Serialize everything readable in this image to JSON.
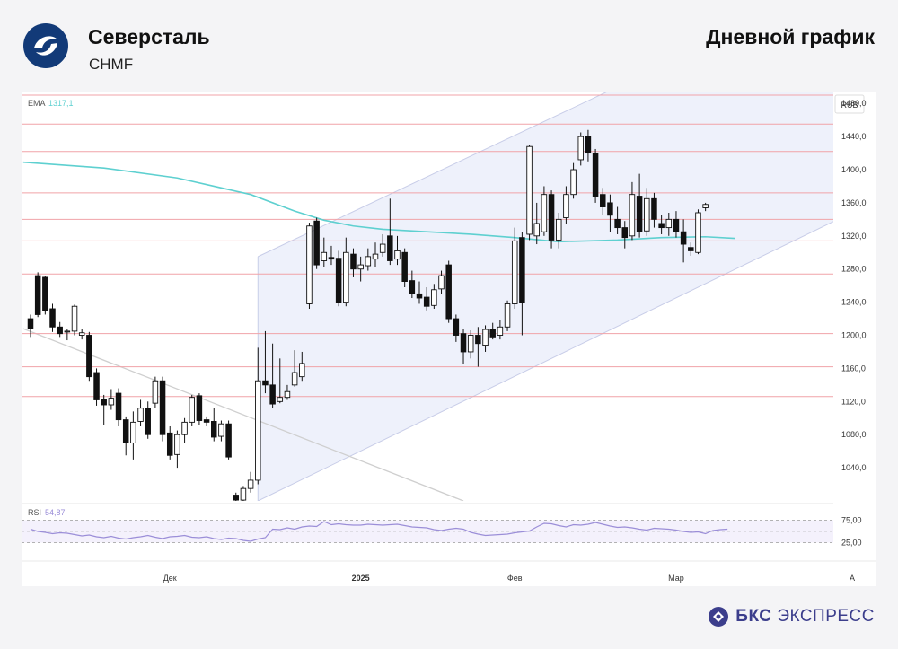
{
  "header": {
    "company_name": "Северсталь",
    "ticker": "CHMF",
    "period_label": "Дневной график"
  },
  "brand": {
    "name_bold": "БКС",
    "name_regular": "ЭКСПРЕСС"
  },
  "colors": {
    "up_candle": "#ffffff",
    "down_candle": "#111111",
    "ema_line": "#5ed0d0",
    "rsi_line": "#9b8ed8",
    "level_lines": "#f1a3a8",
    "channel": "#c8cde8",
    "brand": "#3c3e8c"
  },
  "icons": {
    "company_logo": "severstal-logo-icon",
    "brand_logo": "bks-logo-icon"
  },
  "chart_data": {
    "type": "candlestick",
    "currency_label": "RUB",
    "price_range": [
      1000,
      1490
    ],
    "price_ticks": [
      "1480,0",
      "1440,0",
      "1400,0",
      "1360,0",
      "1320,0",
      "1280,0",
      "1240,0",
      "1200,0",
      "1160,0",
      "1120,0",
      "1080,0",
      "1040,0"
    ],
    "price_tick_values": [
      1480,
      1440,
      1400,
      1360,
      1320,
      1280,
      1240,
      1200,
      1160,
      1120,
      1080,
      1040
    ],
    "x_labels": [
      {
        "text": "Дек",
        "index": 19
      },
      {
        "text": "2025",
        "index": 45
      },
      {
        "text": "Фев",
        "index": 66
      },
      {
        "text": "Мар",
        "index": 88
      },
      {
        "text": "А",
        "index": 112
      }
    ],
    "ema": {
      "label": "EMA",
      "value": "1317,1",
      "points": [
        [
          -1,
          1409
        ],
        [
          10,
          1402
        ],
        [
          20,
          1390
        ],
        [
          30,
          1370
        ],
        [
          36,
          1350
        ],
        [
          40,
          1339
        ],
        [
          44,
          1332
        ],
        [
          48,
          1328
        ],
        [
          54,
          1325
        ],
        [
          60,
          1322
        ],
        [
          66,
          1318
        ],
        [
          72,
          1313
        ],
        [
          80,
          1315
        ],
        [
          86,
          1318
        ],
        [
          92,
          1319
        ],
        [
          96,
          1317
        ]
      ]
    },
    "rsi": {
      "label": "RSI",
      "value": "54,87",
      "ticks": [
        "75,00",
        "25,00"
      ],
      "range": [
        0,
        100
      ],
      "values": [
        55,
        50,
        48,
        45,
        47,
        46,
        43,
        40,
        42,
        38,
        36,
        39,
        35,
        33,
        36,
        38,
        41,
        37,
        34,
        38,
        39,
        41,
        37,
        36,
        38,
        34,
        32,
        35,
        34,
        30,
        28,
        33,
        36,
        55,
        54,
        58,
        55,
        60,
        62,
        61,
        72,
        65,
        67,
        65,
        64,
        64,
        66,
        65,
        64,
        65,
        66,
        63,
        60,
        59,
        58,
        54,
        52,
        55,
        57,
        55,
        48,
        44,
        41,
        42,
        43,
        44,
        47,
        49,
        51,
        60,
        68,
        67,
        63,
        60,
        65,
        64,
        66,
        70,
        66,
        62,
        59,
        60,
        58,
        55,
        53,
        57,
        56,
        55,
        53,
        50,
        48,
        49,
        45,
        52,
        54,
        55
      ]
    },
    "horizontal_levels": [
      1490,
      1455,
      1422,
      1372,
      1340,
      1314,
      1274,
      1202,
      1162,
      1126
    ],
    "channel": {
      "lower_line": [
        [
          31,
          1000
        ],
        [
          114,
          1357
        ]
      ],
      "upper_line": [
        [
          31,
          1295
        ],
        [
          80,
          1500
        ]
      ]
    },
    "descending_line": [
      [
        -1,
        1208
      ],
      [
        59,
        1000
      ]
    ],
    "candles": [
      [
        1220,
        1208,
        1225,
        1198
      ],
      [
        1272,
        1225,
        1276,
        1222
      ],
      [
        1270,
        1230,
        1272,
        1225
      ],
      [
        1232,
        1210,
        1238,
        1204
      ],
      [
        1210,
        1202,
        1216,
        1198
      ],
      [
        1204,
        1205,
        1208,
        1194
      ],
      [
        1205,
        1235,
        1237,
        1200
      ],
      [
        1200,
        1203,
        1208,
        1195
      ],
      [
        1200,
        1150,
        1204,
        1145
      ],
      [
        1155,
        1122,
        1160,
        1115
      ],
      [
        1122,
        1116,
        1128,
        1092
      ],
      [
        1116,
        1124,
        1135,
        1110
      ],
      [
        1130,
        1098,
        1136,
        1090
      ],
      [
        1098,
        1070,
        1102,
        1055
      ],
      [
        1070,
        1095,
        1108,
        1050
      ],
      [
        1096,
        1112,
        1122,
        1090
      ],
      [
        1112,
        1080,
        1120,
        1075
      ],
      [
        1118,
        1145,
        1150,
        1112
      ],
      [
        1145,
        1080,
        1150,
        1072
      ],
      [
        1082,
        1055,
        1090,
        1050
      ],
      [
        1056,
        1080,
        1085,
        1040
      ],
      [
        1080,
        1095,
        1100,
        1070
      ],
      [
        1095,
        1125,
        1128,
        1090
      ],
      [
        1127,
        1097,
        1130,
        1092
      ],
      [
        1098,
        1095,
        1102,
        1090
      ],
      [
        1096,
        1077,
        1112,
        1072
      ],
      [
        1078,
        1093,
        1097,
        1072
      ],
      [
        1093,
        1053,
        1097,
        1050
      ],
      [
        1007,
        1001,
        1010,
        996
      ],
      [
        1001,
        1015,
        1018,
        998
      ],
      [
        1015,
        1025,
        1035,
        1010
      ],
      [
        1025,
        1145,
        1185,
        1020
      ],
      [
        1145,
        1140,
        1205,
        1130
      ],
      [
        1140,
        1117,
        1190,
        1112
      ],
      [
        1120,
        1125,
        1172,
        1118
      ],
      [
        1125,
        1132,
        1140,
        1122
      ],
      [
        1140,
        1155,
        1182,
        1138
      ],
      [
        1150,
        1166,
        1180,
        1145
      ],
      [
        1238,
        1332,
        1336,
        1232
      ],
      [
        1338,
        1285,
        1342,
        1280
      ],
      [
        1290,
        1300,
        1318,
        1282
      ],
      [
        1294,
        1292,
        1308,
        1285
      ],
      [
        1293,
        1240,
        1302,
        1235
      ],
      [
        1240,
        1300,
        1318,
        1235
      ],
      [
        1298,
        1280,
        1305,
        1270
      ],
      [
        1280,
        1285,
        1295,
        1265
      ],
      [
        1284,
        1295,
        1305,
        1278
      ],
      [
        1292,
        1298,
        1312,
        1282
      ],
      [
        1300,
        1310,
        1322,
        1295
      ],
      [
        1320,
        1290,
        1365,
        1285
      ],
      [
        1292,
        1302,
        1320,
        1285
      ],
      [
        1300,
        1265,
        1305,
        1258
      ],
      [
        1266,
        1250,
        1278,
        1245
      ],
      [
        1250,
        1245,
        1265,
        1238
      ],
      [
        1246,
        1235,
        1258,
        1230
      ],
      [
        1236,
        1255,
        1262,
        1232
      ],
      [
        1256,
        1272,
        1278,
        1250
      ],
      [
        1285,
        1220,
        1290,
        1215
      ],
      [
        1220,
        1200,
        1225,
        1192
      ],
      [
        1202,
        1180,
        1208,
        1165
      ],
      [
        1180,
        1200,
        1206,
        1172
      ],
      [
        1200,
        1190,
        1210,
        1162
      ],
      [
        1188,
        1207,
        1212,
        1180
      ],
      [
        1207,
        1198,
        1215,
        1195
      ],
      [
        1200,
        1210,
        1218,
        1195
      ],
      [
        1210,
        1238,
        1242,
        1205
      ],
      [
        1238,
        1314,
        1330,
        1232
      ],
      [
        1318,
        1240,
        1325,
        1200
      ],
      [
        1322,
        1428,
        1430,
        1315
      ],
      [
        1320,
        1335,
        1360,
        1310
      ],
      [
        1325,
        1370,
        1380,
        1320
      ],
      [
        1370,
        1315,
        1375,
        1305
      ],
      [
        1315,
        1340,
        1348,
        1305
      ],
      [
        1342,
        1370,
        1380,
        1335
      ],
      [
        1370,
        1400,
        1408,
        1365
      ],
      [
        1412,
        1440,
        1445,
        1405
      ],
      [
        1440,
        1420,
        1448,
        1410
      ],
      [
        1420,
        1368,
        1425,
        1360
      ],
      [
        1370,
        1355,
        1378,
        1345
      ],
      [
        1360,
        1345,
        1370,
        1325
      ],
      [
        1340,
        1330,
        1355,
        1322
      ],
      [
        1330,
        1318,
        1338,
        1305
      ],
      [
        1320,
        1370,
        1385,
        1315
      ],
      [
        1368,
        1325,
        1395,
        1318
      ],
      [
        1326,
        1365,
        1378,
        1320
      ],
      [
        1365,
        1340,
        1372,
        1330
      ],
      [
        1335,
        1330,
        1345,
        1322
      ],
      [
        1330,
        1340,
        1348,
        1320
      ],
      [
        1340,
        1325,
        1350,
        1318
      ],
      [
        1325,
        1310,
        1340,
        1288
      ],
      [
        1306,
        1302,
        1312,
        1296
      ],
      [
        1300,
        1348,
        1352,
        1298
      ],
      [
        1354,
        1358,
        1360,
        1350
      ]
    ]
  }
}
